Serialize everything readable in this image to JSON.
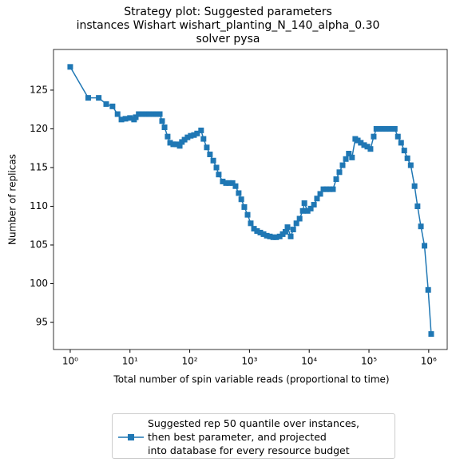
{
  "chart_data": {
    "type": "line",
    "title": "Strategy plot: Suggested parameters\n instances Wishart wishart_planting_N_140_alpha_0.30\n solver pysa",
    "xlabel": "Total number of spin variable reads (proportional to time)",
    "ylabel": "Number of replicas",
    "xscale": "log",
    "xlim": [
      0.525,
      2040000
    ],
    "ylim": [
      91.5,
      130.25
    ],
    "xticks": [
      {
        "value": 1,
        "label": "10⁰"
      },
      {
        "value": 10,
        "label": "10¹"
      },
      {
        "value": 100,
        "label": "10²"
      },
      {
        "value": 1000,
        "label": "10³"
      },
      {
        "value": 10000,
        "label": "10⁴"
      },
      {
        "value": 100000,
        "label": "10⁵"
      },
      {
        "value": 1000000,
        "label": "10⁶"
      }
    ],
    "yticks": [
      95,
      100,
      105,
      110,
      115,
      120,
      125
    ],
    "legend_loc": "below",
    "series": [
      {
        "name": "Suggested rep 50 quantile over instances,\n then best parameter, and projected\n into database for every resource budget",
        "color": "#1f77b4",
        "marker": "square",
        "x": [
          1,
          2,
          3,
          4,
          5.1,
          6.2,
          7.2,
          8.4,
          10,
          11.7,
          12.5,
          14,
          16,
          18.6,
          21,
          24.6,
          27.8,
          31.5,
          34.5,
          37.9,
          42.7,
          47,
          53,
          60,
          68,
          74,
          82,
          92,
          104,
          118,
          133,
          155,
          170,
          193,
          218,
          248,
          280,
          306,
          357,
          405,
          457,
          520,
          585,
          660,
          730,
          820,
          930,
          1050,
          1190,
          1340,
          1520,
          1720,
          1950,
          2200,
          2500,
          2800,
          3200,
          3600,
          4000,
          4330,
          4900,
          5400,
          6100,
          6900,
          7800,
          8300,
          9400,
          10600,
          12000,
          13500,
          15300,
          17300,
          19500,
          22000,
          25000,
          28300,
          32000,
          36200,
          41000,
          46000,
          52000,
          59000,
          65000,
          73000,
          83000,
          94000,
          106000,
          120000,
          133000,
          150000,
          170000,
          192000,
          218000,
          246000,
          270000,
          305000,
          345000,
          390000,
          440000,
          500000,
          580000,
          650000,
          740000,
          850000,
          980000,
          1100000
        ],
        "values": [
          128,
          124,
          124,
          123.2,
          122.9,
          121.9,
          121.2,
          121.3,
          121.4,
          121.2,
          121.5,
          121.9,
          121.9,
          121.9,
          121.9,
          121.9,
          121.9,
          121.9,
          121,
          120.2,
          119,
          118.2,
          118,
          118,
          117.8,
          118.3,
          118.6,
          118.9,
          119.1,
          119.2,
          119.4,
          119.8,
          118.7,
          117.6,
          116.7,
          115.9,
          115,
          114.1,
          113.2,
          113,
          113,
          113,
          112.6,
          111.7,
          110.9,
          109.9,
          108.9,
          107.8,
          107.1,
          106.8,
          106.6,
          106.4,
          106.2,
          106.1,
          106,
          106,
          106.1,
          106.4,
          106.7,
          107.3,
          106.1,
          107,
          107.8,
          108.4,
          109.4,
          110.4,
          109.4,
          109.7,
          110.2,
          111,
          111.6,
          112.2,
          112.2,
          112.2,
          112.2,
          113.5,
          114.4,
          115.3,
          116.1,
          116.8,
          116.3,
          118.7,
          118.5,
          118.2,
          117.9,
          117.7,
          117.4,
          119,
          120,
          120,
          120,
          120,
          120,
          120,
          120,
          119,
          118.2,
          117.2,
          116.2,
          115.3,
          112.6,
          110,
          107.4,
          104.9,
          99.2,
          93.5
        ]
      }
    ]
  }
}
